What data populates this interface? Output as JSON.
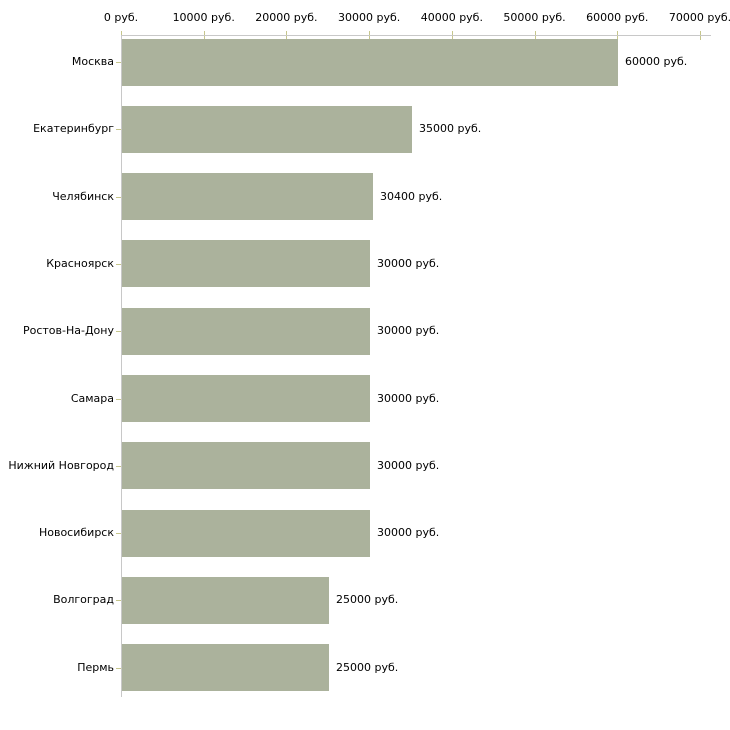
{
  "chart_data": {
    "type": "bar",
    "orientation": "horizontal",
    "title": "",
    "xlabel": "",
    "ylabel": "",
    "unit": "руб.",
    "xlim": [
      0,
      70000
    ],
    "grid": false,
    "legend": false,
    "categories": [
      "Москва",
      "Екатеринбург",
      "Челябинск",
      "Красноярск",
      "Ростов-На-Дону",
      "Самара",
      "Нижний Новгород",
      "Новосибирск",
      "Волгоград",
      "Пермь"
    ],
    "values": [
      60000,
      35000,
      30400,
      30000,
      30000,
      30000,
      30000,
      30000,
      25000,
      25000
    ],
    "value_labels": [
      "60000 руб.",
      "35000 руб.",
      "30400 руб.",
      "30000 руб.",
      "30000 руб.",
      "30000 руб.",
      "30000 руб.",
      "30000 руб.",
      "25000 руб.",
      "25000 руб."
    ],
    "x_ticks": [
      0,
      10000,
      20000,
      30000,
      40000,
      50000,
      60000,
      70000
    ],
    "x_tick_labels": [
      "0 руб.",
      "10000 руб.",
      "20000 руб.",
      "30000 руб.",
      "40000 руб.",
      "50000 руб.",
      "60000 руб.",
      "70000 руб."
    ],
    "colors": {
      "bar": "#abb29c",
      "axis": "#c8c8c8",
      "tick": "#c6c68c",
      "text": "#000000",
      "background": "#ffffff"
    }
  }
}
